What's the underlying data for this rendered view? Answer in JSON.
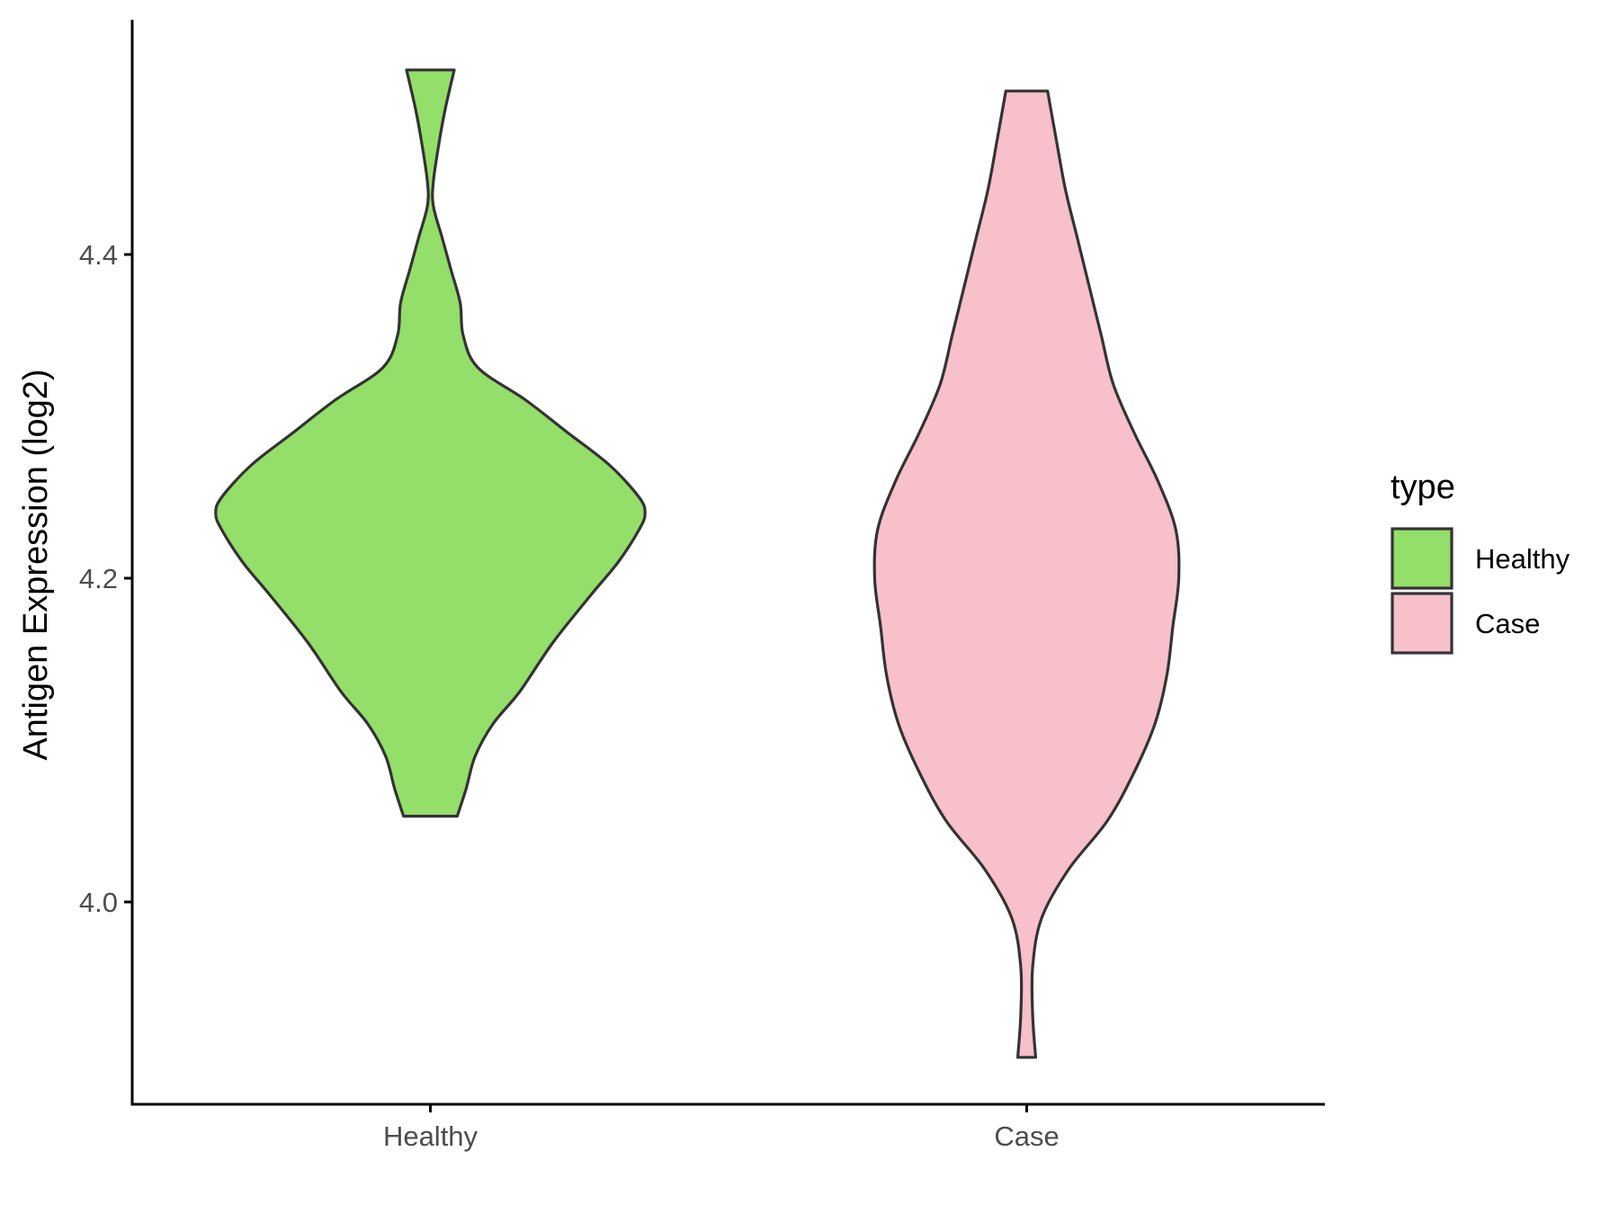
{
  "chart_data": {
    "type": "violin",
    "ylabel": "Antigen Expression (log2)",
    "xlabel": "",
    "categories": [
      "Healthy",
      "Case"
    ],
    "ylim": [
      3.875,
      4.545
    ],
    "yticks": [
      4.0,
      4.2,
      4.4
    ],
    "ytick_labels": [
      "4.0",
      "4.2",
      "4.4"
    ],
    "legend": {
      "title": "type",
      "position": "right",
      "entries": [
        {
          "label": "Healthy",
          "color": "#94de6a"
        },
        {
          "label": "Case",
          "color": "#f7c0cb"
        }
      ]
    },
    "grid": false,
    "series": [
      {
        "category": "Healthy",
        "color": "#94de6a",
        "outline": "#333333",
        "y_min": 4.053,
        "y_max": 4.514,
        "profile": [
          [
            4.053,
            0.09
          ],
          [
            4.07,
            0.12
          ],
          [
            4.09,
            0.15
          ],
          [
            4.11,
            0.21
          ],
          [
            4.13,
            0.3
          ],
          [
            4.16,
            0.41
          ],
          [
            4.19,
            0.54
          ],
          [
            4.21,
            0.63
          ],
          [
            4.23,
            0.7
          ],
          [
            4.24,
            0.72
          ],
          [
            4.25,
            0.7
          ],
          [
            4.27,
            0.6
          ],
          [
            4.29,
            0.46
          ],
          [
            4.31,
            0.32
          ],
          [
            4.33,
            0.16
          ],
          [
            4.35,
            0.11
          ],
          [
            4.37,
            0.1
          ],
          [
            4.39,
            0.07
          ],
          [
            4.41,
            0.04
          ],
          [
            4.43,
            0.01
          ],
          [
            4.445,
            0.01
          ],
          [
            4.47,
            0.03
          ],
          [
            4.49,
            0.05
          ],
          [
            4.514,
            0.08
          ]
        ]
      },
      {
        "category": "Case",
        "color": "#f7c0cb",
        "outline": "#333333",
        "y_min": 3.904,
        "y_max": 4.501,
        "profile": [
          [
            3.904,
            0.03
          ],
          [
            3.93,
            0.02
          ],
          [
            3.96,
            0.02
          ],
          [
            3.99,
            0.05
          ],
          [
            4.02,
            0.14
          ],
          [
            4.05,
            0.27
          ],
          [
            4.08,
            0.36
          ],
          [
            4.11,
            0.43
          ],
          [
            4.14,
            0.47
          ],
          [
            4.17,
            0.49
          ],
          [
            4.2,
            0.51
          ],
          [
            4.23,
            0.5
          ],
          [
            4.26,
            0.44
          ],
          [
            4.29,
            0.36
          ],
          [
            4.32,
            0.29
          ],
          [
            4.35,
            0.25
          ],
          [
            4.38,
            0.21
          ],
          [
            4.41,
            0.17
          ],
          [
            4.44,
            0.13
          ],
          [
            4.47,
            0.1
          ],
          [
            4.501,
            0.07
          ]
        ]
      }
    ]
  }
}
